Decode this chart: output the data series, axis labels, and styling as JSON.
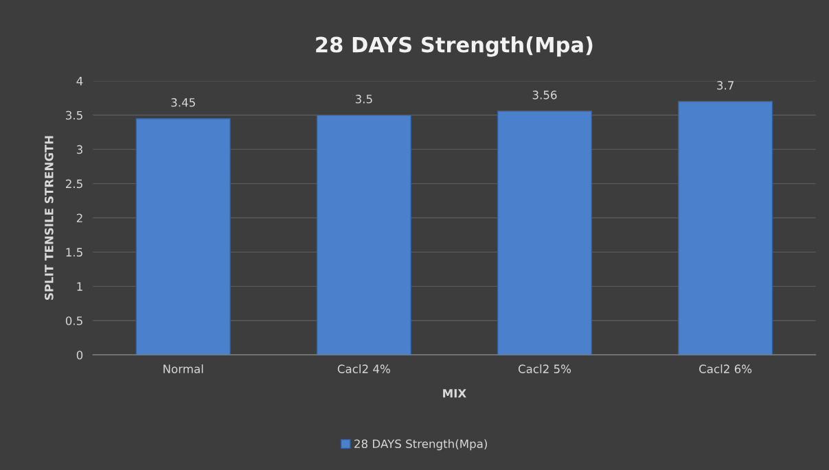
{
  "chart_data": {
    "type": "bar",
    "title": "28 DAYS Strength(Mpa)",
    "xlabel": "MIX",
    "ylabel": "SPLIT TENSILE STRENGTH",
    "categories": [
      "Normal",
      "Cacl2 4%",
      "Cacl2 5%",
      "Cacl2 6%"
    ],
    "series": [
      {
        "name": "28 DAYS Strength(Mpa)",
        "color": "#4a80cc",
        "values": [
          3.45,
          3.5,
          3.56,
          3.7
        ]
      }
    ],
    "ylim": [
      0,
      4
    ],
    "yticks": [
      0,
      0.5,
      1,
      1.5,
      2,
      2.5,
      3,
      3.5,
      4
    ],
    "grid": "y",
    "legend": "bottom",
    "data_labels": true
  }
}
